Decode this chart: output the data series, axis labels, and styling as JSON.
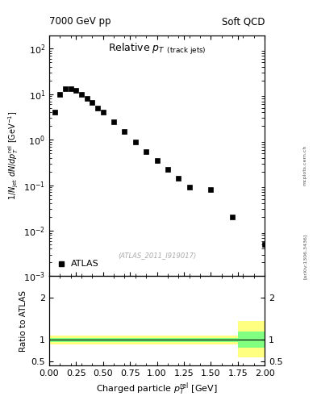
{
  "title_left": "7000 GeV pp",
  "title_right": "Soft QCD",
  "plot_title": "Relative p_{T} (track jets)",
  "xlabel": "Charged particle p_{T}^{rel} [GeV]",
  "ylabel_main": "1/N_{jet} dN/dp_{T}^{rel} [GeV^{-1}]",
  "ylabel_ratio": "Ratio to ATLAS",
  "watermark": "(ATLAS_2011_I919017)",
  "arxiv_label": "[arXiv:1306.3436]",
  "mcplots_label": "mcplots.cern.ch",
  "data_x": [
    0.05,
    0.1,
    0.15,
    0.2,
    0.25,
    0.3,
    0.35,
    0.4,
    0.45,
    0.5,
    0.6,
    0.7,
    0.8,
    0.9,
    1.0,
    1.1,
    1.2,
    1.3,
    1.5,
    1.7,
    2.0
  ],
  "data_y": [
    4.0,
    10.0,
    13.0,
    13.5,
    12.0,
    10.0,
    8.0,
    6.5,
    5.0,
    4.0,
    2.5,
    1.5,
    0.9,
    0.55,
    0.35,
    0.22,
    0.14,
    0.09,
    0.08,
    0.02,
    0.005
  ],
  "ylim_main": [
    0.001,
    200
  ],
  "xlim": [
    0.0,
    2.0
  ],
  "ylim_ratio": [
    0.4,
    2.5
  ],
  "ratio_yticks": [
    0.5,
    1.0,
    2.0
  ],
  "data_color": "#000000",
  "green_color": "#80ff80",
  "yellow_color": "#ffff80",
  "background_color": "#ffffff",
  "marker_style": "s",
  "marker_size": 4,
  "yellow_x": [
    0.0,
    1.6,
    1.75,
    2.05
  ],
  "yellow_lo": [
    0.9,
    0.9,
    0.6,
    0.6
  ],
  "yellow_hi": [
    1.1,
    1.1,
    1.45,
    1.45
  ],
  "green_x": [
    0.0,
    1.6,
    1.75,
    2.05
  ],
  "green_lo": [
    0.95,
    0.95,
    0.82,
    0.82
  ],
  "green_hi": [
    1.05,
    1.05,
    1.2,
    1.2
  ]
}
